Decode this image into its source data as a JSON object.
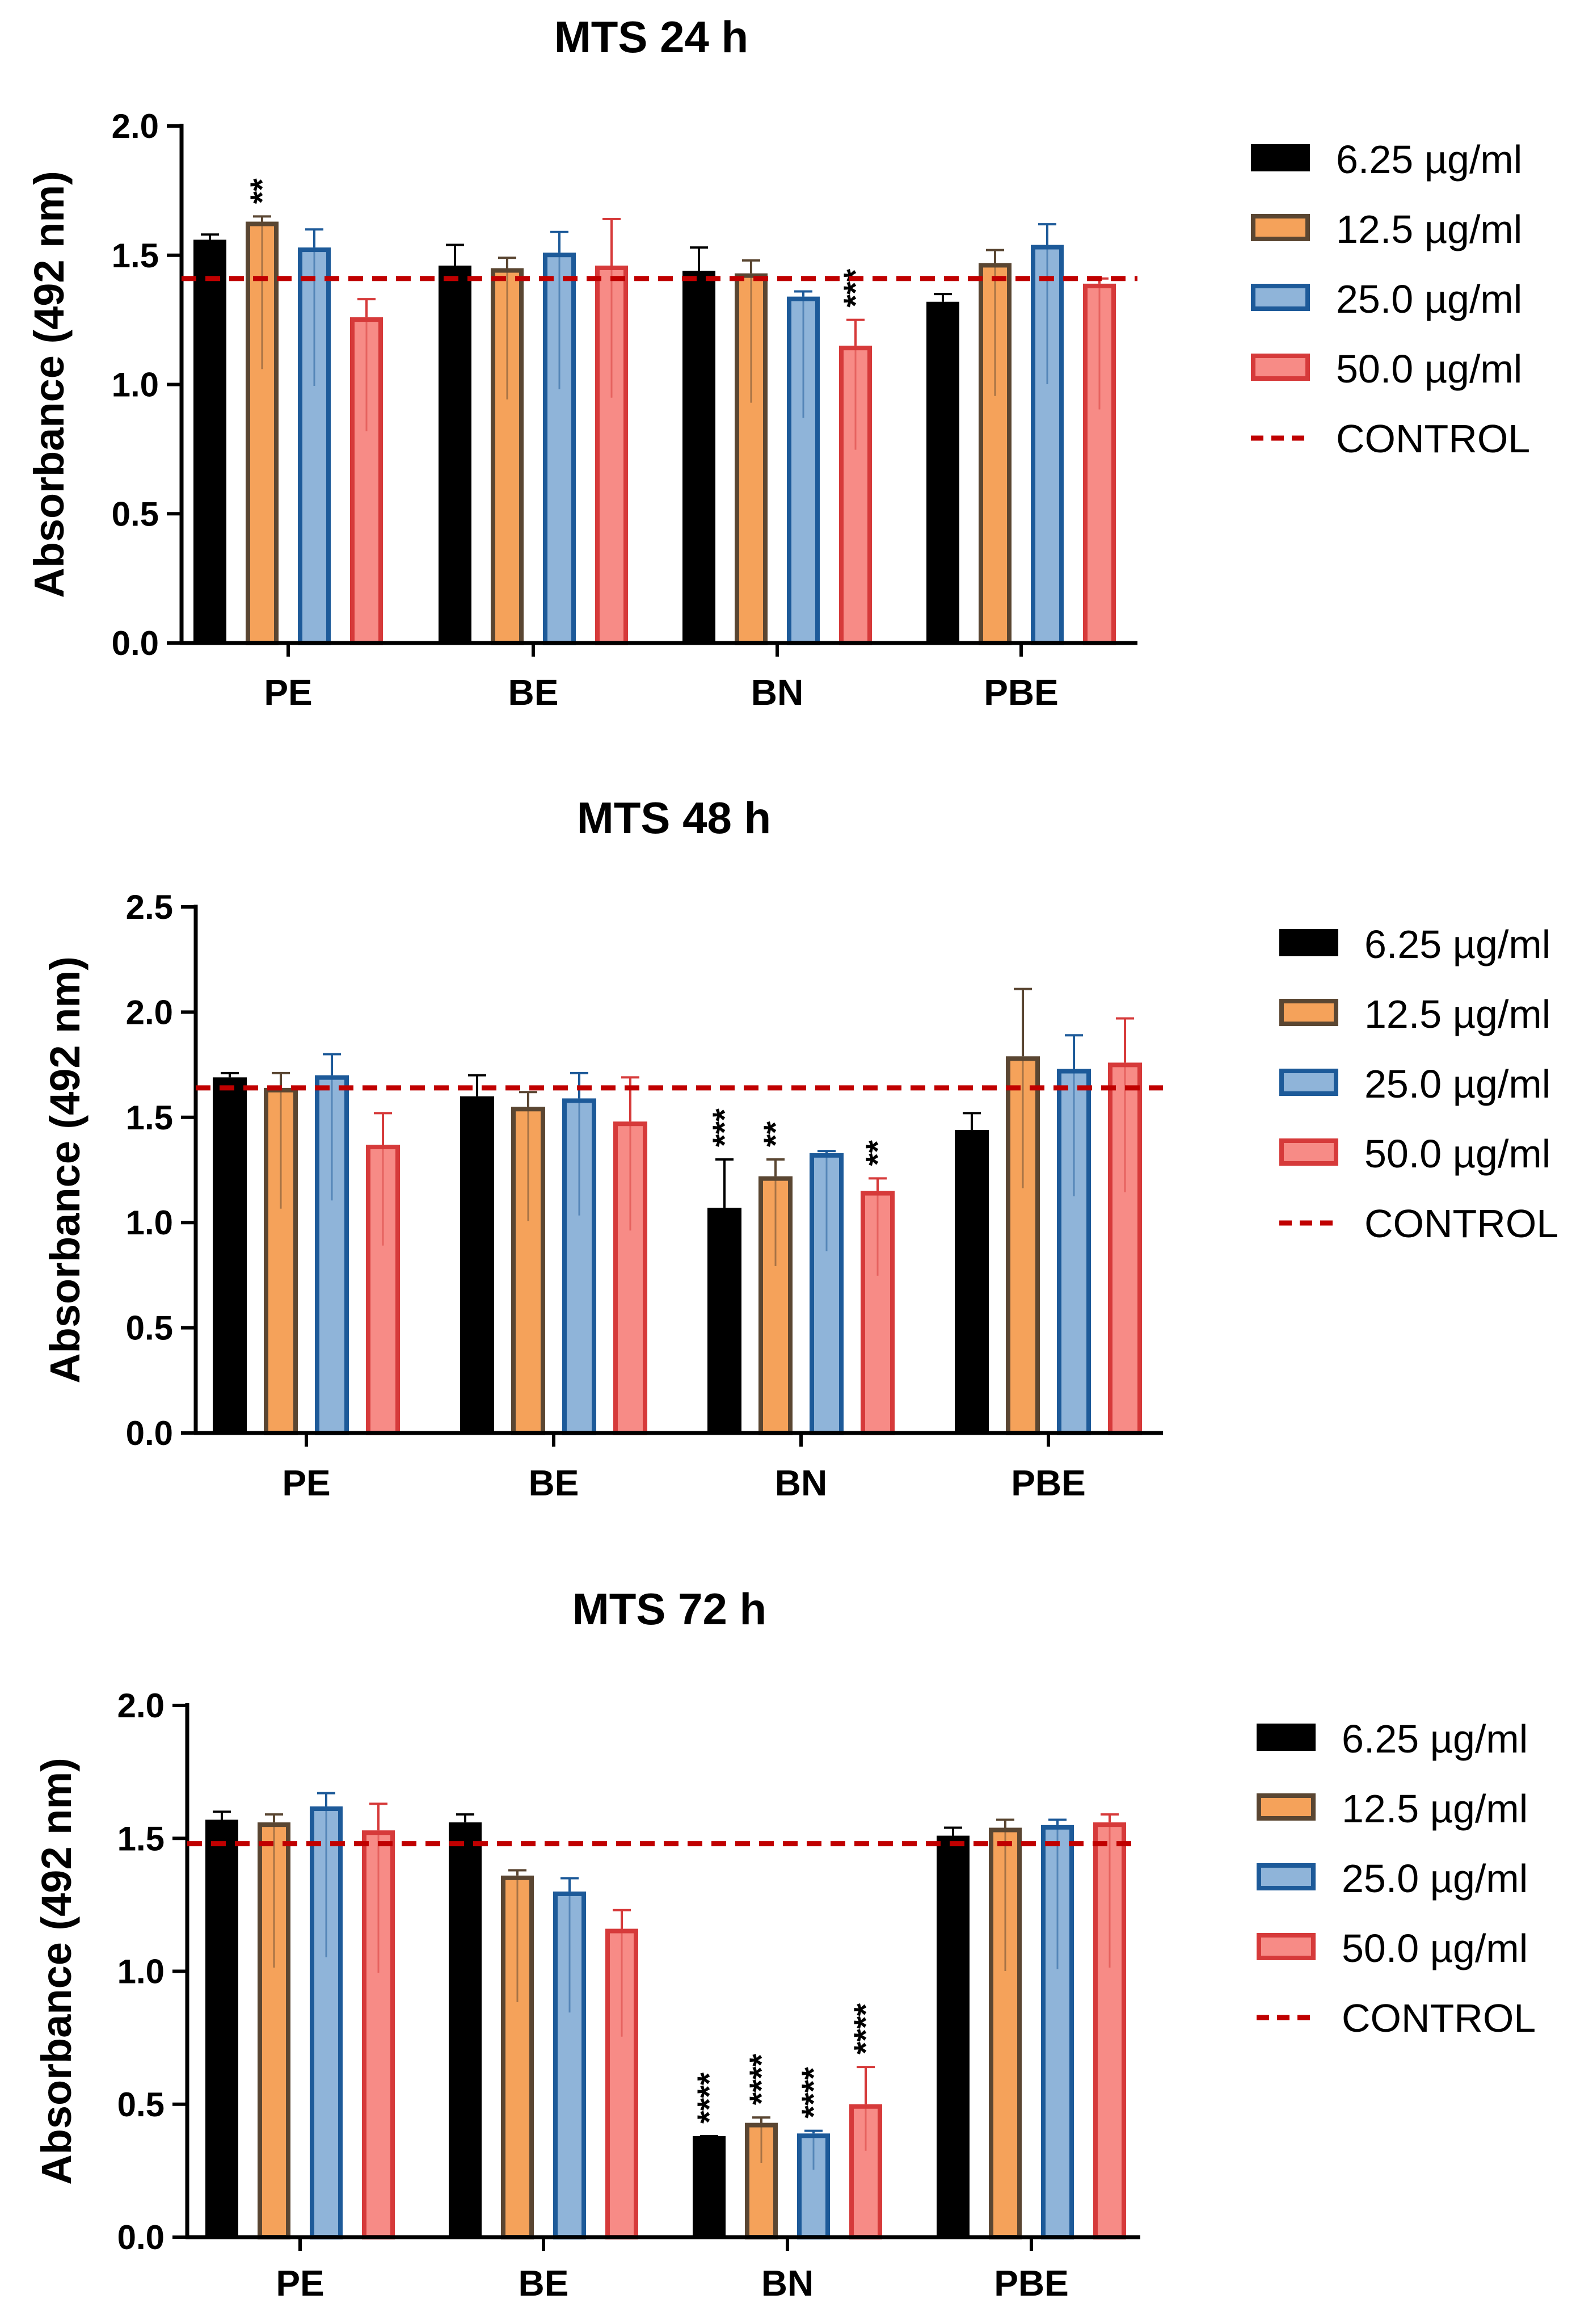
{
  "chart_data": [
    {
      "type": "bar",
      "title": "MTS 24 h",
      "ylabel": "Absorbance (492 nm)",
      "xlabel": "",
      "ylim": [
        0,
        2.0
      ],
      "yticks": [
        "0.0",
        "0.5",
        "1.0",
        "1.5",
        "2.0"
      ],
      "categories": [
        "PE",
        "BE",
        "BN",
        "PBE"
      ],
      "control": 1.41,
      "series": [
        {
          "name": "6.25 µg/ml",
          "values": [
            1.56,
            1.46,
            1.44,
            1.32
          ],
          "errors": [
            0.02,
            0.08,
            0.09,
            0.03
          ]
        },
        {
          "name": "12.5 µg/ml",
          "values": [
            1.63,
            1.45,
            1.43,
            1.47
          ],
          "errors": [
            0.02,
            0.04,
            0.05,
            0.05
          ]
        },
        {
          "name": "25.0 µg/ml",
          "values": [
            1.53,
            1.51,
            1.34,
            1.54
          ],
          "errors": [
            0.07,
            0.08,
            0.02,
            0.08
          ]
        },
        {
          "name": "50.0 µg/ml",
          "values": [
            1.26,
            1.46,
            1.15,
            1.39
          ],
          "errors": [
            0.07,
            0.18,
            0.1,
            0.02
          ]
        }
      ],
      "significance": [
        {
          "series": 1,
          "category": 0,
          "label": "**"
        },
        {
          "series": 3,
          "category": 2,
          "label": "***"
        }
      ],
      "legend": [
        "6.25 µg/ml",
        "12.5 µg/ml",
        "25.0 µg/ml",
        "50.0 µg/ml",
        "CONTROL"
      ]
    },
    {
      "type": "bar",
      "title": "MTS 48 h",
      "ylabel": "Absorbance (492 nm)",
      "xlabel": "",
      "ylim": [
        0,
        2.5
      ],
      "yticks": [
        "0.0",
        "0.5",
        "1.0",
        "1.5",
        "2.0",
        "2.5"
      ],
      "categories": [
        "PE",
        "BE",
        "BN",
        "PBE"
      ],
      "control": 1.64,
      "series": [
        {
          "name": "6.25 µg/ml",
          "values": [
            1.69,
            1.6,
            1.07,
            1.44
          ],
          "errors": [
            0.02,
            0.1,
            0.23,
            0.08
          ]
        },
        {
          "name": "12.5 µg/ml",
          "values": [
            1.64,
            1.55,
            1.22,
            1.79
          ],
          "errors": [
            0.07,
            0.07,
            0.08,
            0.32
          ]
        },
        {
          "name": "25.0 µg/ml",
          "values": [
            1.7,
            1.59,
            1.33,
            1.73
          ],
          "errors": [
            0.1,
            0.12,
            0.01,
            0.16
          ]
        },
        {
          "name": "50.0 µg/ml",
          "values": [
            1.37,
            1.48,
            1.15,
            1.76
          ],
          "errors": [
            0.15,
            0.21,
            0.06,
            0.21
          ]
        }
      ],
      "significance": [
        {
          "series": 0,
          "category": 2,
          "label": "***"
        },
        {
          "series": 1,
          "category": 2,
          "label": "**"
        },
        {
          "series": 3,
          "category": 2,
          "label": "**"
        }
      ],
      "legend": [
        "6.25 µg/ml",
        "12.5 µg/ml",
        "25.0 µg/ml",
        "50.0 µg/ml",
        "CONTROL"
      ]
    },
    {
      "type": "bar",
      "title": "MTS 72 h",
      "ylabel": "Absorbance (492 nm)",
      "xlabel": "",
      "ylim": [
        0,
        2.0
      ],
      "yticks": [
        "0.0",
        "0.5",
        "1.0",
        "1.5",
        "2.0"
      ],
      "categories": [
        "PE",
        "BE",
        "BN",
        "PBE"
      ],
      "control": 1.48,
      "series": [
        {
          "name": "6.25 µg/ml",
          "values": [
            1.57,
            1.56,
            0.38,
            1.51
          ],
          "errors": [
            0.03,
            0.03,
            0.0,
            0.03
          ]
        },
        {
          "name": "12.5 µg/ml",
          "values": [
            1.56,
            1.36,
            0.43,
            1.54
          ],
          "errors": [
            0.03,
            0.02,
            0.02,
            0.03
          ]
        },
        {
          "name": "25.0 µg/ml",
          "values": [
            1.62,
            1.3,
            0.39,
            1.55
          ],
          "errors": [
            0.05,
            0.05,
            0.01,
            0.02
          ]
        },
        {
          "name": "50.0 µg/ml",
          "values": [
            1.53,
            1.16,
            0.5,
            1.56
          ],
          "errors": [
            0.1,
            0.07,
            0.14,
            0.03
          ]
        }
      ],
      "significance": [
        {
          "series": 0,
          "category": 2,
          "label": "****"
        },
        {
          "series": 1,
          "category": 2,
          "label": "****"
        },
        {
          "series": 2,
          "category": 2,
          "label": "****"
        },
        {
          "series": 3,
          "category": 2,
          "label": "****"
        }
      ],
      "legend": [
        "6.25 µg/ml",
        "12.5 µg/ml",
        "25.0 µg/ml",
        "50.0 µg/ml",
        "CONTROL"
      ]
    }
  ],
  "style": {
    "series_fill": [
      "#000000",
      "#f5a25a",
      "#8fb4d9",
      "#f78b86"
    ],
    "series_stroke": [
      "#000000",
      "#5a4632",
      "#1d5a99",
      "#d63a3a"
    ],
    "control_color": "#c00000"
  }
}
